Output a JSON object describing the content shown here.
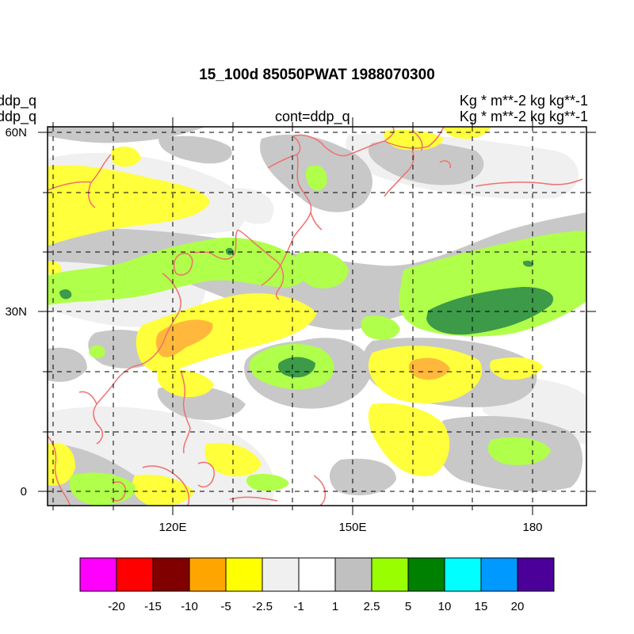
{
  "title": "15_100d 85050PWAT  1988070300",
  "left_labels": [
    "ddp_q",
    "ddp_q"
  ],
  "center_label": "cont=ddp_q",
  "right_labels": [
    "Kg  * m**-2 kg kg**-1",
    "Kg  * m**-2 kg kg**-1"
  ],
  "axes": {
    "lat_ticks": [
      "60N",
      "30N",
      "0"
    ],
    "lon_ticks": [
      "120E",
      "150E",
      "180"
    ]
  },
  "colorbar": {
    "colors": [
      "#ff00ff",
      "#ff0000",
      "#800000",
      "#ffa500",
      "#ffff00",
      "#f0f0f0",
      "#ffffff",
      "#c0c0c0",
      "#99ff00",
      "#008000",
      "#00ffff",
      "#0099ff",
      "#4b0099"
    ],
    "labels": [
      "-20",
      "-15",
      "-10",
      "-5",
      "-2.5",
      "-1",
      "1",
      "2.5",
      "5",
      "10",
      "15",
      "20"
    ]
  },
  "palette": {
    "coastline": "#f07070",
    "grid": "#000000",
    "light_gray": "#f0f0f0",
    "gray": "#c8c8c8",
    "yellow": "#ffff3c",
    "orange": "#ffb83c",
    "light_green": "#b0ff4a",
    "green": "#3c9a48"
  }
}
